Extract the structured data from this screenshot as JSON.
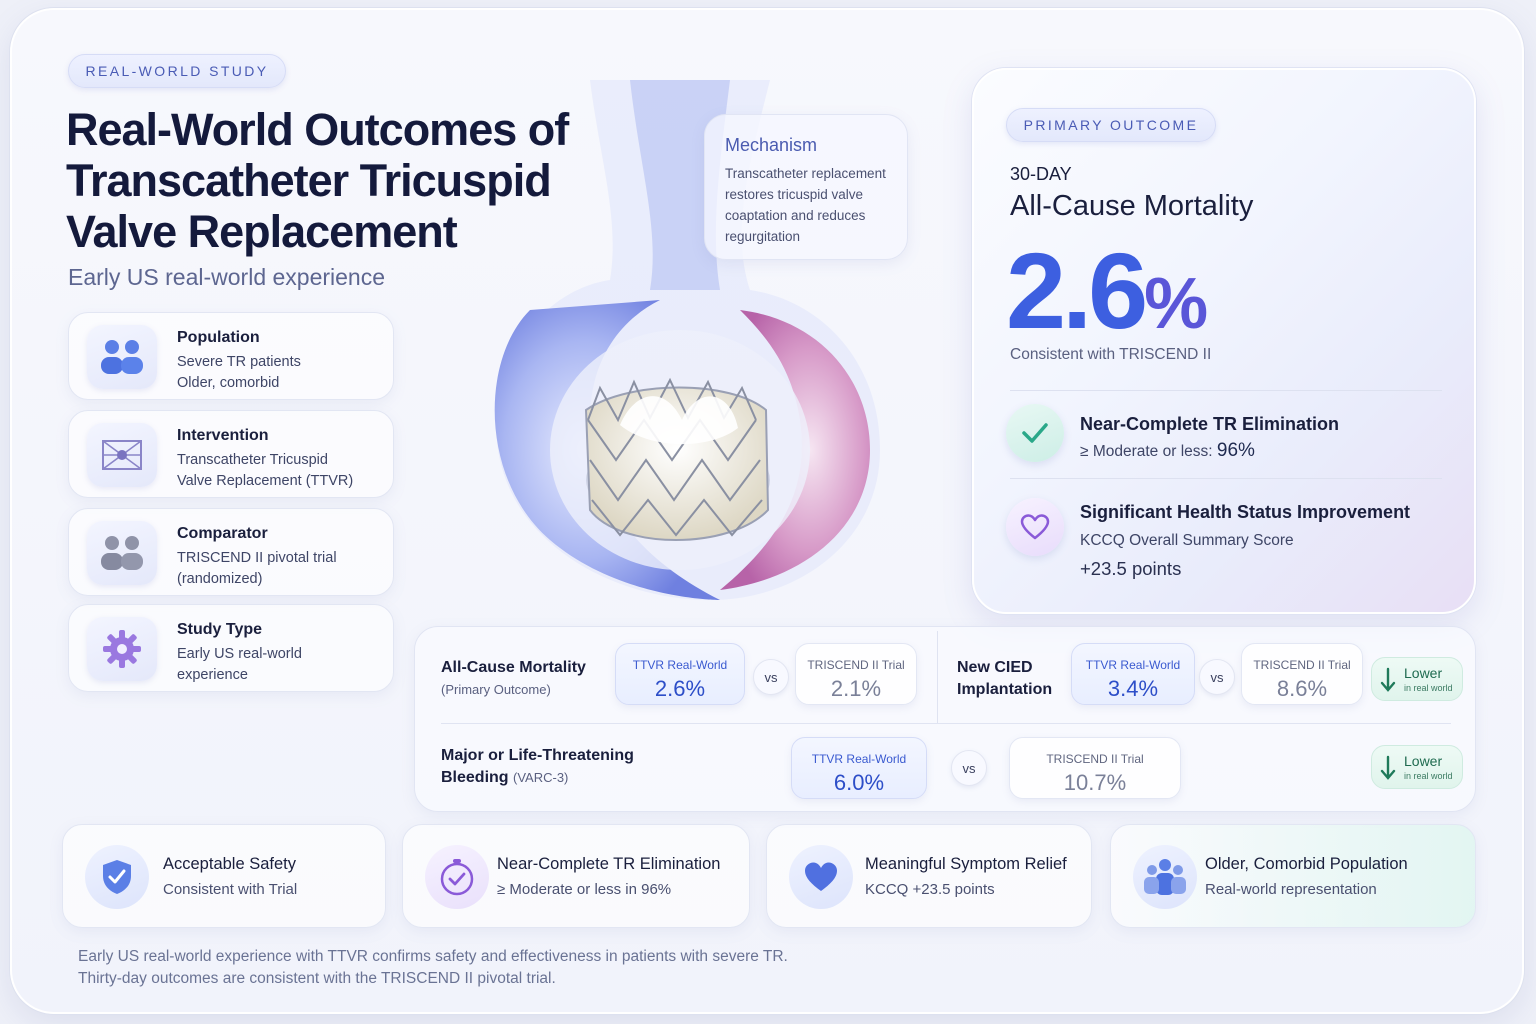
{
  "badge": "REAL-WORLD STUDY",
  "title": "Real-World Outcomes of Transcatheter Tricuspid Valve Replacement",
  "subtitle": "Early US real-world experience",
  "pico": [
    {
      "icon": "people-icon",
      "heading": "Population",
      "line1": "Severe TR patients",
      "line2": "Older, comorbid"
    },
    {
      "icon": "valve-icon",
      "heading": "Intervention",
      "line1": "Transcatheter Tricuspid",
      "line2": "Valve Replacement (TTVR)"
    },
    {
      "icon": "people-gray-icon",
      "heading": "Comparator",
      "line1": "TRISCEND II pivotal trial",
      "line2": "(randomized)"
    },
    {
      "icon": "gear-icon",
      "heading": "Study Type",
      "line1": "Early US real-world",
      "line2": "experience"
    }
  ],
  "mechanism": {
    "title": "Mechanism",
    "body": "Transcatheter replacement restores tricuspid valve coaptation and reduces regurgitation"
  },
  "primary": {
    "badge": "PRIMARY OUTCOME",
    "timeframe": "30-DAY",
    "measure": "All-Cause Mortality",
    "value": "2.6",
    "unit": "%",
    "note": "Consistent with TRISCEND II",
    "items": [
      {
        "icon": "check-icon",
        "title": "Near-Complete TR Elimination",
        "line1": "≥ Moderate or less:",
        "line1_value": "96%"
      },
      {
        "icon": "heart-icon",
        "title": "Significant Health Status Improvement",
        "line1": "KCCQ Overall Summary Score",
        "line2": "+23.5 points"
      }
    ]
  },
  "comparisons": {
    "row1_left": {
      "label": "All-Cause Mortality",
      "sub": "(Primary Outcome)",
      "ttvr_label": "TTVR Real-World",
      "ttvr_value": "2.6%",
      "vs": "vs",
      "trial_label": "TRISCEND II Trial",
      "trial_value": "2.1%"
    },
    "row1_right": {
      "label_line1": "New CIED",
      "label_line2": "Implantation",
      "ttvr_label": "TTVR Real-World",
      "ttvr_value": "3.4%",
      "vs": "vs",
      "trial_label": "TRISCEND II Trial",
      "trial_value": "8.6%",
      "lower": "Lower",
      "lower_sub": "in real world"
    },
    "row2": {
      "label_line1": "Major or Life-Threatening",
      "label_line2": "Bleeding",
      "sub": "(VARC-3)",
      "ttvr_label": "TTVR Real-World",
      "ttvr_value": "6.0%",
      "vs": "vs",
      "trial_label": "TRISCEND II Trial",
      "trial_value": "10.7%",
      "lower": "Lower",
      "lower_sub": "in real world"
    }
  },
  "bottom": [
    {
      "icon": "shield-check-icon",
      "title": "Acceptable Safety",
      "line": "Consistent with Trial"
    },
    {
      "icon": "timer-check-icon",
      "title": "Near-Complete TR Elimination",
      "line": "≥ Moderate or less in 96%"
    },
    {
      "icon": "heart-icon",
      "title": "Meaningful Symptom Relief",
      "line": "KCCQ +23.5 points"
    },
    {
      "icon": "group-icon",
      "title": "Older, Comorbid Population",
      "line": "Real-world representation"
    }
  ],
  "footer": {
    "line1": "Early US real-world experience with TTVR confirms safety and effectiveness in patients with severe TR.",
    "line2": "Thirty-day outcomes are consistent with the TRISCEND II pivotal trial."
  }
}
